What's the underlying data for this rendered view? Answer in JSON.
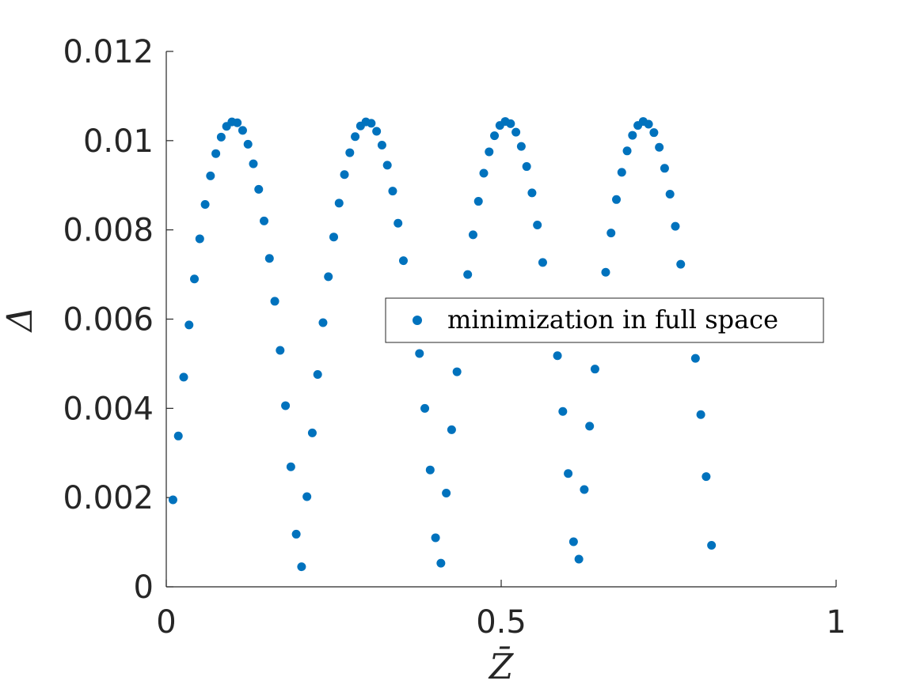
{
  "chart_data": {
    "type": "scatter",
    "xlabel": "Z̄",
    "ylabel": "Δ",
    "xlim": [
      0,
      1
    ],
    "ylim": [
      0,
      0.012
    ],
    "x_ticks": [
      {
        "value": 0,
        "label": "0"
      },
      {
        "value": 0.5,
        "label": "0.5"
      },
      {
        "value": 1,
        "label": "1"
      }
    ],
    "y_ticks": [
      {
        "value": 0,
        "label": "0"
      },
      {
        "value": 0.002,
        "label": "0.002"
      },
      {
        "value": 0.004,
        "label": "0.004"
      },
      {
        "value": 0.006,
        "label": "0.006"
      },
      {
        "value": 0.008,
        "label": "0.008"
      },
      {
        "value": 0.01,
        "label": "0.01"
      },
      {
        "value": 0.012,
        "label": "0.012"
      }
    ],
    "grid": false,
    "legend_position": "center-right",
    "series": [
      {
        "name": "minimization in full space",
        "color": "#0072BD",
        "points": [
          [
            0.01,
            0.00195
          ],
          [
            0.018,
            0.00338
          ],
          [
            0.026,
            0.0047
          ],
          [
            0.034,
            0.00587
          ],
          [
            0.042,
            0.0069
          ],
          [
            0.05,
            0.0078
          ],
          [
            0.058,
            0.00857
          ],
          [
            0.066,
            0.00921
          ],
          [
            0.074,
            0.00971
          ],
          [
            0.082,
            0.01008
          ],
          [
            0.09,
            0.01032
          ],
          [
            0.098,
            0.01042
          ],
          [
            0.106,
            0.0104
          ],
          [
            0.114,
            0.01023
          ],
          [
            0.122,
            0.00992
          ],
          [
            0.13,
            0.00948
          ],
          [
            0.138,
            0.00891
          ],
          [
            0.146,
            0.0082
          ],
          [
            0.154,
            0.00736
          ],
          [
            0.162,
            0.0064
          ],
          [
            0.17,
            0.0053
          ],
          [
            0.178,
            0.00406
          ],
          [
            0.186,
            0.00269
          ],
          [
            0.194,
            0.00118
          ],
          [
            0.202,
            0.00045
          ],
          [
            0.21,
            0.00202
          ],
          [
            0.218,
            0.00345
          ],
          [
            0.226,
            0.00476
          ],
          [
            0.234,
            0.00592
          ],
          [
            0.242,
            0.00695
          ],
          [
            0.25,
            0.00784
          ],
          [
            0.258,
            0.0086
          ],
          [
            0.266,
            0.00924
          ],
          [
            0.274,
            0.00973
          ],
          [
            0.282,
            0.01009
          ],
          [
            0.29,
            0.01033
          ],
          [
            0.298,
            0.01042
          ],
          [
            0.306,
            0.01039
          ],
          [
            0.314,
            0.01021
          ],
          [
            0.322,
            0.0099
          ],
          [
            0.33,
            0.00945
          ],
          [
            0.338,
            0.00887
          ],
          [
            0.346,
            0.00815
          ],
          [
            0.354,
            0.00731
          ],
          [
            0.378,
            0.00523
          ],
          [
            0.386,
            0.004
          ],
          [
            0.394,
            0.00262
          ],
          [
            0.402,
            0.0011
          ],
          [
            0.41,
            0.00053
          ],
          [
            0.418,
            0.0021
          ],
          [
            0.426,
            0.00352
          ],
          [
            0.434,
            0.00482
          ],
          [
            0.45,
            0.007
          ],
          [
            0.458,
            0.00789
          ],
          [
            0.466,
            0.00864
          ],
          [
            0.474,
            0.00927
          ],
          [
            0.482,
            0.00975
          ],
          [
            0.49,
            0.01011
          ],
          [
            0.498,
            0.01034
          ],
          [
            0.506,
            0.01043
          ],
          [
            0.514,
            0.01038
          ],
          [
            0.522,
            0.01019
          ],
          [
            0.53,
            0.00987
          ],
          [
            0.538,
            0.00942
          ],
          [
            0.546,
            0.00883
          ],
          [
            0.554,
            0.00811
          ],
          [
            0.562,
            0.00727
          ],
          [
            0.584,
            0.00518
          ],
          [
            0.592,
            0.00393
          ],
          [
            0.6,
            0.00254
          ],
          [
            0.608,
            0.00101
          ],
          [
            0.616,
            0.00062
          ],
          [
            0.624,
            0.00218
          ],
          [
            0.632,
            0.0036
          ],
          [
            0.64,
            0.00488
          ],
          [
            0.656,
            0.00705
          ],
          [
            0.664,
            0.00793
          ],
          [
            0.672,
            0.00868
          ],
          [
            0.68,
            0.00929
          ],
          [
            0.688,
            0.00977
          ],
          [
            0.696,
            0.01012
          ],
          [
            0.704,
            0.01034
          ],
          [
            0.712,
            0.01043
          ],
          [
            0.72,
            0.01037
          ],
          [
            0.728,
            0.01018
          ],
          [
            0.736,
            0.00985
          ],
          [
            0.744,
            0.00938
          ],
          [
            0.752,
            0.0088
          ],
          [
            0.76,
            0.00808
          ],
          [
            0.768,
            0.00723
          ],
          [
            0.79,
            0.00512
          ],
          [
            0.798,
            0.00386
          ],
          [
            0.806,
            0.00247
          ],
          [
            0.814,
            0.00093
          ]
        ]
      }
    ]
  }
}
